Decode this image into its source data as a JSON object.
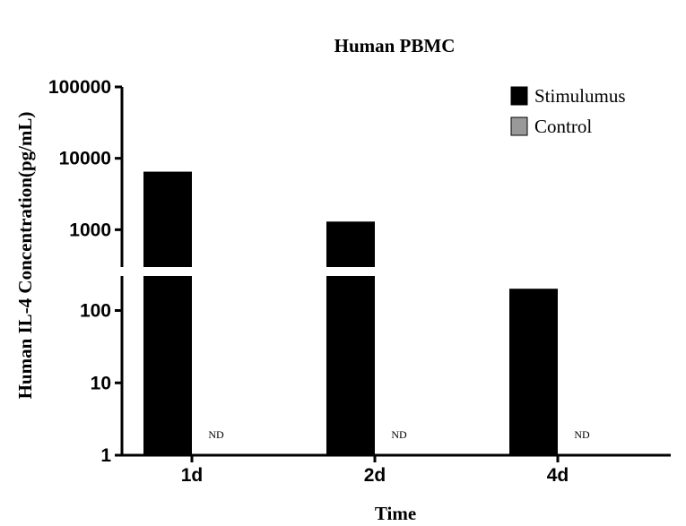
{
  "chart_data": {
    "type": "bar",
    "title": "Human PBMC",
    "xlabel": "Time",
    "ylabel": "Human IL-4 Concentration(pg/mL)",
    "y_scale": "log",
    "y_axis_break": [
      300,
      300
    ],
    "ylim": [
      1,
      100000
    ],
    "y_ticks": [
      {
        "value": 1,
        "label": "1"
      },
      {
        "value": 10,
        "label": "10"
      },
      {
        "value": 100,
        "label": "100"
      },
      {
        "value": 1000,
        "label": "1000"
      },
      {
        "value": 10000,
        "label": "10000"
      },
      {
        "value": 100000,
        "label": "100000"
      }
    ],
    "categories": [
      "1d",
      "2d",
      "4d"
    ],
    "series": [
      {
        "name": "Stimulumus",
        "color": "#000000",
        "values": [
          6500,
          1300,
          200
        ]
      },
      {
        "name": "Control",
        "color": "#999999",
        "values": [
          null,
          null,
          null
        ]
      }
    ],
    "annotations": [
      "ND",
      "ND",
      "ND"
    ],
    "legend_position": "top-right",
    "grid": false
  }
}
